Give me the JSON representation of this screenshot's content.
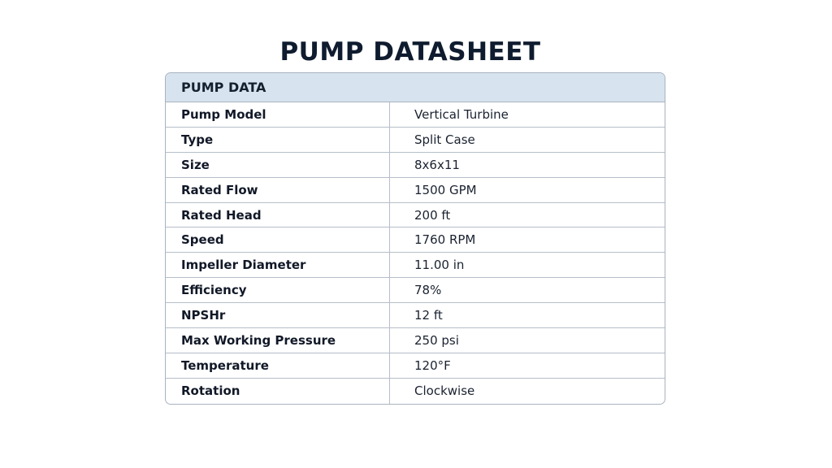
{
  "document": {
    "title": "PUMP DATASHEET",
    "section_header": "PUMP DATA",
    "rows": [
      {
        "label": "Pump Model",
        "value": "Vertical Turbine"
      },
      {
        "label": "Type",
        "value": "Split Case"
      },
      {
        "label": "Size",
        "value": "8x6x11"
      },
      {
        "label": "Rated Flow",
        "value": "1500 GPM"
      },
      {
        "label": "Rated Head",
        "value": "200 ft"
      },
      {
        "label": "Speed",
        "value": "1760 RPM"
      },
      {
        "label": "Impeller Diameter",
        "value": "11.00 in"
      },
      {
        "label": "Efficiency",
        "value": "78%"
      },
      {
        "label": "NPSHr",
        "value": "12 ft"
      },
      {
        "label": "Max Working Pressure",
        "value": "250 psi"
      },
      {
        "label": "Temperature",
        "value": "120°F"
      },
      {
        "label": "Rotation",
        "value": "Clockwise"
      }
    ]
  },
  "colors": {
    "header_background": "#d7e3ee",
    "border": "#a9b3c0",
    "title_text": "#0f1b2e"
  }
}
